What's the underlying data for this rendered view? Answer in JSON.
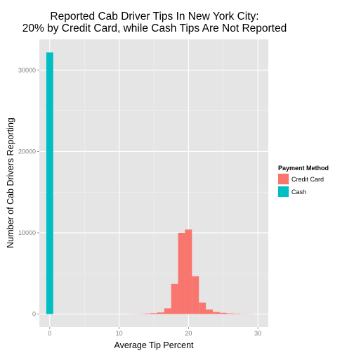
{
  "chart_data": {
    "type": "bar",
    "title_line1": "Reported Cab Driver Tips In New York City:",
    "title_line2": "20% by Credit Card, while Cash Tips Are Not Reported",
    "xlabel": "Average Tip Percent",
    "ylabel": "Number of Cab Drivers Reporting",
    "xlim": [
      -1.5,
      31.5
    ],
    "ylim": [
      -1600,
      33800
    ],
    "x_ticks": [
      0,
      10,
      20,
      30
    ],
    "y_ticks": [
      0,
      10000,
      20000,
      30000
    ],
    "grid": true,
    "legend_position": "right",
    "legend_title": "Payment Method",
    "bin_width": 1,
    "series": [
      {
        "name": "Credit Card",
        "color": "#F8766D",
        "bins": [
          {
            "x": 12,
            "value": 15
          },
          {
            "x": 13,
            "value": 30
          },
          {
            "x": 14,
            "value": 60
          },
          {
            "x": 15,
            "value": 110
          },
          {
            "x": 16,
            "value": 200
          },
          {
            "x": 17,
            "value": 700
          },
          {
            "x": 18,
            "value": 3700
          },
          {
            "x": 19,
            "value": 10000
          },
          {
            "x": 20,
            "value": 10400
          },
          {
            "x": 21,
            "value": 4650
          },
          {
            "x": 22,
            "value": 1400
          },
          {
            "x": 23,
            "value": 550
          },
          {
            "x": 24,
            "value": 250
          },
          {
            "x": 25,
            "value": 150
          },
          {
            "x": 26,
            "value": 80
          },
          {
            "x": 27,
            "value": 50
          },
          {
            "x": 28,
            "value": 30
          },
          {
            "x": 29,
            "value": 20
          }
        ]
      },
      {
        "name": "Cash",
        "color": "#00BFC4",
        "bins": [
          {
            "x": 0,
            "value": 32200
          }
        ]
      }
    ]
  }
}
